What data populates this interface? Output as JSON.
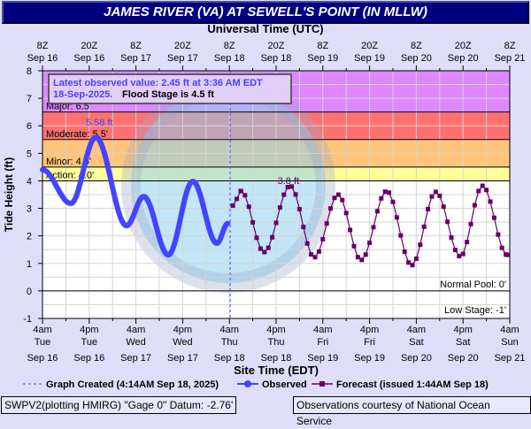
{
  "title": "JAMES RIVER (VA) AT SEWELL'S POINT (IN MLLW)",
  "footer_left": "SWPV2(plotting HMIRG) \"Gage 0\" Datum: -2.76'",
  "footer_right": "Observations courtesy of National Ocean Service",
  "chart_data": {
    "type": "line",
    "title": "JAMES RIVER (VA) AT SEWELL'S POINT (IN MLLW)",
    "top_axis_label": "Universal Time (UTC)",
    "xlabel": "Site Time (EDT)",
    "ylabel": "Tide Height (ft)",
    "ylim": [
      -1,
      8
    ],
    "yticks": [
      "-1",
      "0",
      "1",
      "2",
      "3",
      "4",
      "5",
      "6",
      "7",
      "8"
    ],
    "x_unit": "hours since 4am EDT Sep 16",
    "xlim": [
      0,
      120
    ],
    "top_ticks": [
      [
        "8Z",
        "Sep 16"
      ],
      [
        "20Z",
        "Sep 16"
      ],
      [
        "8Z",
        "Sep 17"
      ],
      [
        "20Z",
        "Sep 17"
      ],
      [
        "8Z",
        "Sep 18"
      ],
      [
        "20Z",
        "Sep 18"
      ],
      [
        "8Z",
        "Sep 19"
      ],
      [
        "20Z",
        "Sep 19"
      ],
      [
        "8Z",
        "Sep 20"
      ],
      [
        "20Z",
        "Sep 20"
      ],
      [
        "8Z",
        "Sep 21"
      ]
    ],
    "bottom_ticks": [
      [
        "4am",
        "Tue",
        "Sep 16"
      ],
      [
        "4pm",
        "Tue",
        "Sep 16"
      ],
      [
        "4am",
        "Wed",
        "Sep 17"
      ],
      [
        "4pm",
        "Wed",
        "Sep 17"
      ],
      [
        "4am",
        "Thu",
        "Sep 18"
      ],
      [
        "4pm",
        "Thu",
        "Sep 18"
      ],
      [
        "4am",
        "Fri",
        "Sep 19"
      ],
      [
        "4pm",
        "Fri",
        "Sep 19"
      ],
      [
        "4am",
        "Sat",
        "Sep 20"
      ],
      [
        "4pm",
        "Sat",
        "Sep 20"
      ],
      [
        "4am",
        "Sun",
        "Sep 21"
      ]
    ],
    "stages": [
      {
        "label": "Major: 6.5'",
        "value": 6.5,
        "top": 8,
        "color": "#dd88ff"
      },
      {
        "label": "Moderate: 5.5'",
        "value": 5.5,
        "top": 6.5,
        "color": "#ff7070"
      },
      {
        "label": "Minor: 4.5'",
        "value": 4.5,
        "top": 5.5,
        "color": "#ffc477"
      },
      {
        "label": "Action: 4.0'",
        "value": 4.0,
        "top": 4.5,
        "color": "#ffff9c"
      }
    ],
    "normal_pool": "Normal Pool: 0'",
    "low_stage": "Low Stage: -1'",
    "graph_created_hour": 48.2,
    "observed": {
      "name": "Observed",
      "color": "#4444ff",
      "extrema": [
        [
          0,
          4.4
        ],
        [
          7.3,
          3.18
        ],
        [
          13.7,
          5.58
        ],
        [
          21.6,
          2.37
        ],
        [
          26,
          3.43
        ],
        [
          32.3,
          1.31
        ],
        [
          38.6,
          3.98
        ],
        [
          44.8,
          1.73
        ],
        [
          47.6,
          2.45
        ]
      ]
    },
    "forecast": {
      "name": "Forecast (issued 1:44AM Sep 18)",
      "color": "#660066",
      "extrema": [
        [
          48.9,
          3.1
        ],
        [
          51,
          3.63
        ],
        [
          56.9,
          1.41
        ],
        [
          63.6,
          3.82
        ],
        [
          69.8,
          1.22
        ],
        [
          75.9,
          3.5
        ],
        [
          81.8,
          1.12
        ],
        [
          88.4,
          3.63
        ],
        [
          94.8,
          0.93
        ],
        [
          101,
          3.6
        ],
        [
          107.3,
          1.25
        ],
        [
          113,
          3.82
        ],
        [
          119.3,
          1.31
        ]
      ]
    },
    "annotations": {
      "obs_peak": "5.58 ft",
      "fcst_peak": "3.8 ft"
    },
    "info_line1": "Latest observed value: 2.45 ft at 3:36 AM EDT",
    "info_line2a": "18-Sep-2025.",
    "info_line2b": "Flood Stage is 4.5 ft",
    "legend": {
      "created": "Graph Created (4:14AM Sep 18, 2025)",
      "observed": "Observed",
      "forecast": "Forecast (issued 1:44AM Sep 18)"
    }
  }
}
